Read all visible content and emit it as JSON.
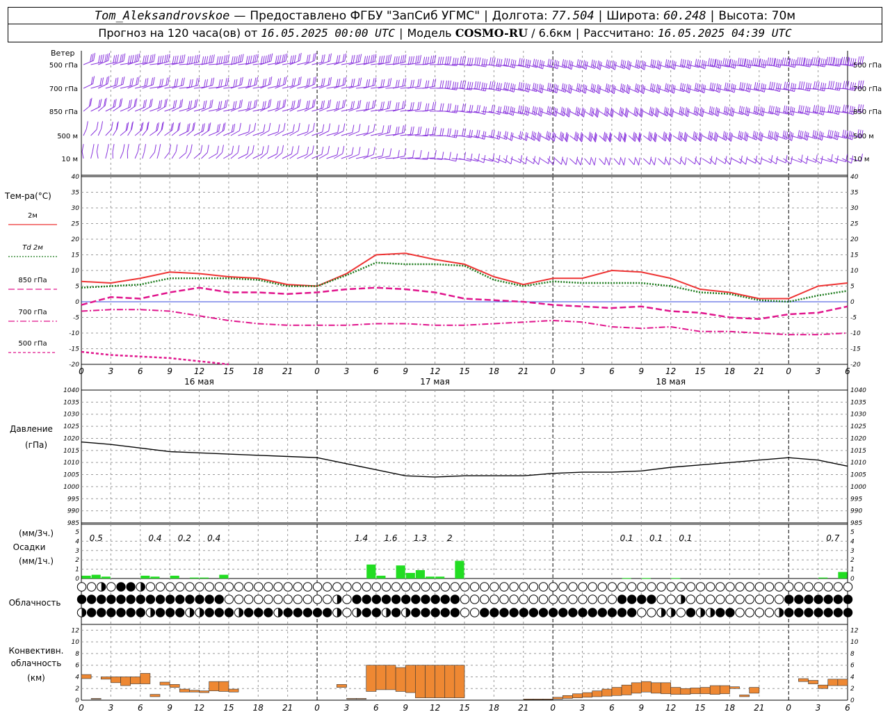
{
  "header": {
    "station": "Tom_Aleksandrovskoe",
    "provider": "Предоставлено ФГБУ \"ЗапСиб УГМС\"",
    "lon_label": "Долгота:",
    "lon_value": "77.504",
    "lat_label": "Широта:",
    "lat_value": "60.248",
    "alt_label": "Высота:",
    "alt_value": "70м",
    "forecast_label": "Прогноз на 120 часа(ов) от",
    "forecast_start": "16.05.2025 00:00 UTC",
    "model_label": "Модель",
    "model_name": "COSMO-RU",
    "model_res": "6.6км",
    "computed_label": "Рассчитано:",
    "computed_at": "16.05.2025 04:39 UTC",
    "dash": "—",
    "slash": "/",
    "bar": "|"
  },
  "panels": {
    "wind": {
      "title": "Ветер",
      "levels": [
        "500 гПа",
        "700 гПа",
        "850 гПа",
        "500 м",
        "10 м"
      ]
    },
    "temp": {
      "title": "Тем-ра(°C)",
      "legend": [
        {
          "label": "2м",
          "color": "#ee3333",
          "dash": "solid"
        },
        {
          "label": "Td  2м",
          "color": "#1a7a1a",
          "dash": "dotted"
        },
        {
          "label": "850 гПа",
          "color": "#e0148c",
          "dash": "long"
        },
        {
          "label": "700 гПа",
          "color": "#e0148c",
          "dash": "dashdot"
        },
        {
          "label": "500 гПа",
          "color": "#e0148c",
          "dash": "short"
        }
      ]
    },
    "pressure": {
      "title": "Давление",
      "unit": "(гПа)"
    },
    "precip": {
      "title": "Осадки",
      "unit_top": "(мм/3ч.)",
      "unit_bottom": "(мм/1ч.)"
    },
    "cloud": {
      "title": "Облачность"
    },
    "conv": {
      "title": "Конвективн.",
      "title2": "облачность",
      "unit": "(км)"
    }
  },
  "time_axis": {
    "hour_labels": [
      "0",
      "3",
      "6",
      "9",
      "12",
      "15",
      "18",
      "21",
      "0",
      "3",
      "6",
      "9",
      "12",
      "15",
      "18",
      "21",
      "0",
      "3",
      "6",
      "9",
      "12",
      "15",
      "18",
      "21",
      "0",
      "3",
      "6"
    ],
    "days": [
      {
        "label": "16 мая",
        "hour": 12
      },
      {
        "label": "17 мая",
        "hour": 36
      },
      {
        "label": "18 мая",
        "hour": 60
      }
    ]
  },
  "chart_data": [
    {
      "type": "line",
      "name": "temperature",
      "ylim": [
        -20,
        40
      ],
      "yticks": [
        "-20",
        "-15",
        "-10",
        "-5",
        "0",
        "5",
        "10",
        "15",
        "20",
        "25",
        "30",
        "35",
        "40"
      ],
      "x_hours": [
        0,
        3,
        6,
        9,
        12,
        15,
        18,
        21,
        24,
        27,
        30,
        33,
        36,
        39,
        42,
        45,
        48,
        51,
        54,
        57,
        60,
        63,
        66,
        69,
        72,
        75,
        78
      ],
      "series": [
        {
          "name": "2м",
          "color": "#ee3333",
          "values": [
            6.5,
            6,
            7.5,
            9.5,
            9,
            8,
            7.5,
            5.5,
            5,
            9,
            15,
            15.5,
            13.5,
            12,
            8,
            5.5,
            7.5,
            7.5,
            10,
            9.5,
            7.5,
            4,
            3,
            1,
            1,
            5,
            6
          ]
        },
        {
          "name": "Td 2м",
          "color": "#1a7a1a",
          "values": [
            4.5,
            5,
            5.5,
            7.5,
            7.5,
            7.5,
            7,
            5,
            5,
            8.5,
            12.5,
            12,
            12,
            11.5,
            7,
            5,
            6.5,
            6,
            6,
            6,
            5,
            3,
            2.5,
            0.5,
            0,
            2,
            3.5
          ]
        },
        {
          "name": "850 гПа",
          "color": "#e0148c",
          "values": [
            -1,
            1.5,
            1,
            3,
            4.5,
            3,
            3,
            2.5,
            3,
            4,
            4.5,
            4,
            3,
            1,
            0.5,
            0,
            -1,
            -1.5,
            -2,
            -1.5,
            -3,
            -3.5,
            -5,
            -5.5,
            -4,
            -3.5,
            -1.5
          ]
        },
        {
          "name": "700 гПа",
          "color": "#e0148c",
          "values": [
            -3,
            -2.5,
            -2.5,
            -3,
            -4.5,
            -6,
            -7,
            -7.5,
            -7.5,
            -7.5,
            -7,
            -7,
            -7.5,
            -7.5,
            -7,
            -6.5,
            -6,
            -6.5,
            -8,
            -8.5,
            -8,
            -9.5,
            -9.5,
            -10,
            -10.5,
            -10.5,
            -10
          ]
        },
        {
          "name": "500 гПа",
          "color": "#e0148c",
          "values": [
            -16,
            -17,
            -17.5,
            -18,
            -19,
            -20
          ]
        }
      ]
    },
    {
      "type": "line",
      "name": "pressure",
      "ylim": [
        985,
        1040
      ],
      "yticks": [
        "985",
        "990",
        "995",
        "1000",
        "1005",
        "1010",
        "1015",
        "1020",
        "1025",
        "1030",
        "1035",
        "1040"
      ],
      "x_hours": [
        0,
        3,
        6,
        9,
        12,
        15,
        18,
        21,
        24,
        27,
        30,
        33,
        36,
        39,
        42,
        45,
        48,
        51,
        54,
        57,
        60,
        63,
        66,
        69,
        72,
        75,
        78
      ],
      "values": [
        1018.5,
        1017.5,
        1016,
        1014.5,
        1014,
        1013.5,
        1013,
        1012.5,
        1012,
        1009.5,
        1007,
        1004.5,
        1004,
        1004.5,
        1004.5,
        1004.5,
        1005.5,
        1006,
        1006,
        1006.5,
        1008,
        1009,
        1010,
        1011,
        1012,
        1011,
        1008.5
      ]
    },
    {
      "type": "bar",
      "name": "precipitation",
      "ylim": [
        0,
        5
      ],
      "yticks": [
        "0",
        "1",
        "2",
        "3",
        "4",
        "5"
      ],
      "bars": [
        {
          "hour": 0,
          "value": 0.3
        },
        {
          "hour": 1,
          "value": 0.4
        },
        {
          "hour": 2,
          "value": 0.2
        },
        {
          "hour": 6,
          "value": 0.3
        },
        {
          "hour": 7,
          "value": 0.2
        },
        {
          "hour": 9,
          "value": 0.3
        },
        {
          "hour": 11,
          "value": 0.1
        },
        {
          "hour": 12,
          "value": 0.1
        },
        {
          "hour": 14,
          "value": 0.4
        },
        {
          "hour": 29,
          "value": 1.5
        },
        {
          "hour": 30,
          "value": 0.3
        },
        {
          "hour": 32,
          "value": 1.4
        },
        {
          "hour": 33,
          "value": 0.6
        },
        {
          "hour": 34,
          "value": 0.9
        },
        {
          "hour": 35,
          "value": 0.2
        },
        {
          "hour": 36,
          "value": 0.2
        },
        {
          "hour": 38,
          "value": 1.9
        },
        {
          "hour": 55,
          "value": 0.05
        },
        {
          "hour": 57,
          "value": 0.05
        },
        {
          "hour": 60,
          "value": 0.05
        },
        {
          "hour": 75,
          "value": 0.1
        },
        {
          "hour": 77,
          "value": 0.7
        }
      ],
      "totals": [
        {
          "hour": 1.5,
          "label": "0.5"
        },
        {
          "hour": 7.5,
          "label": "0.4"
        },
        {
          "hour": 10.5,
          "label": "0.2"
        },
        {
          "hour": 13.5,
          "label": "0.4"
        },
        {
          "hour": 28.5,
          "label": "1.4"
        },
        {
          "hour": 31.5,
          "label": "1.6"
        },
        {
          "hour": 34.5,
          "label": "1.3"
        },
        {
          "hour": 37.5,
          "label": "2"
        },
        {
          "hour": 55.5,
          "label": "0.1"
        },
        {
          "hour": 58.5,
          "label": "0.1"
        },
        {
          "hour": 61.5,
          "label": "0.1"
        },
        {
          "hour": 76.5,
          "label": "0.7"
        }
      ]
    },
    {
      "type": "table",
      "name": "cloudiness",
      "cells_per_row": 79,
      "rows": [
        "0020442000000000000000000000000000000000000000000000000000000000000000000000000",
        "4444444444444440000000000020444444444440000000000000000444400200000000004444444",
        "2444444244422444244424444420244242444440044444444444444440022042244000024444444"
      ]
    },
    {
      "type": "bar",
      "name": "convective cloud",
      "ylim": [
        0,
        13
      ],
      "yticks": [
        "0",
        "2",
        "4",
        "6",
        "8",
        "10",
        "12"
      ],
      "bars": [
        {
          "hour": 0.5,
          "base": 3.7,
          "top": 4.4
        },
        {
          "hour": 1.5,
          "base": 0.2,
          "top": 0.3
        },
        {
          "hour": 2.5,
          "base": 3.6,
          "top": 4.0
        },
        {
          "hour": 3.5,
          "base": 3.0,
          "top": 4.0
        },
        {
          "hour": 4.5,
          "base": 2.5,
          "top": 4.0
        },
        {
          "hour": 5.5,
          "base": 2.8,
          "top": 4.0
        },
        {
          "hour": 6.5,
          "base": 2.8,
          "top": 4.6
        },
        {
          "hour": 7.5,
          "base": 0.6,
          "top": 1.0
        },
        {
          "hour": 8.5,
          "base": 2.6,
          "top": 3.1
        },
        {
          "hour": 9.5,
          "base": 2.2,
          "top": 2.7
        },
        {
          "hour": 10.5,
          "base": 1.4,
          "top": 1.9
        },
        {
          "hour": 11.5,
          "base": 1.4,
          "top": 1.7
        },
        {
          "hour": 12.5,
          "base": 1.3,
          "top": 1.6
        },
        {
          "hour": 13.5,
          "base": 1.6,
          "top": 3.2
        },
        {
          "hour": 14.5,
          "base": 1.5,
          "top": 3.2
        },
        {
          "hour": 15.5,
          "base": 1.4,
          "top": 1.9
        },
        {
          "hour": 26.5,
          "base": 2.2,
          "top": 2.7
        },
        {
          "hour": 27.5,
          "base": 0.2,
          "top": 0.3
        },
        {
          "hour": 28.5,
          "base": 0.2,
          "top": 0.3
        },
        {
          "hour": 29.5,
          "base": 1.5,
          "top": 6.0
        },
        {
          "hour": 30.5,
          "base": 1.8,
          "top": 6.0
        },
        {
          "hour": 31.5,
          "base": 1.8,
          "top": 6.0
        },
        {
          "hour": 32.5,
          "base": 1.5,
          "top": 5.6
        },
        {
          "hour": 33.5,
          "base": 1.3,
          "top": 6.0
        },
        {
          "hour": 34.5,
          "base": 0.4,
          "top": 6.0
        },
        {
          "hour": 35.5,
          "base": 0.4,
          "top": 6.0
        },
        {
          "hour": 36.5,
          "base": 0.4,
          "top": 6.0
        },
        {
          "hour": 37.5,
          "base": 0.4,
          "top": 6.0
        },
        {
          "hour": 38.5,
          "base": 0.4,
          "top": 6.0
        },
        {
          "hour": 45.5,
          "base": 0.1,
          "top": 0.2
        },
        {
          "hour": 46.5,
          "base": 0.1,
          "top": 0.2
        },
        {
          "hour": 47.5,
          "base": 0.1,
          "top": 0.2
        },
        {
          "hour": 48.5,
          "base": 0.2,
          "top": 0.5
        },
        {
          "hour": 49.5,
          "base": 0.3,
          "top": 0.8
        },
        {
          "hour": 50.5,
          "base": 0.4,
          "top": 1.1
        },
        {
          "hour": 51.5,
          "base": 0.5,
          "top": 1.3
        },
        {
          "hour": 52.5,
          "base": 0.6,
          "top": 1.6
        },
        {
          "hour": 53.5,
          "base": 0.7,
          "top": 1.9
        },
        {
          "hour": 54.5,
          "base": 0.8,
          "top": 2.2
        },
        {
          "hour": 55.5,
          "base": 0.9,
          "top": 2.6
        },
        {
          "hour": 56.5,
          "base": 1.2,
          "top": 3.0
        },
        {
          "hour": 57.5,
          "base": 1.4,
          "top": 3.2
        },
        {
          "hour": 58.5,
          "base": 1.2,
          "top": 3.0
        },
        {
          "hour": 59.5,
          "base": 1.1,
          "top": 3.0
        },
        {
          "hour": 60.5,
          "base": 1.0,
          "top": 2.2
        },
        {
          "hour": 61.5,
          "base": 1.0,
          "top": 2.0
        },
        {
          "hour": 62.5,
          "base": 1.1,
          "top": 2.1
        },
        {
          "hour": 63.5,
          "base": 1.1,
          "top": 2.2
        },
        {
          "hour": 64.5,
          "base": 1.0,
          "top": 2.5
        },
        {
          "hour": 65.5,
          "base": 1.1,
          "top": 2.5
        },
        {
          "hour": 66.5,
          "base": 2.0,
          "top": 2.3
        },
        {
          "hour": 67.5,
          "base": 0.6,
          "top": 0.9
        },
        {
          "hour": 68.5,
          "base": 1.2,
          "top": 2.2
        },
        {
          "hour": 73.5,
          "base": 3.2,
          "top": 3.7
        },
        {
          "hour": 74.5,
          "base": 2.8,
          "top": 3.4
        },
        {
          "hour": 75.5,
          "base": 2.0,
          "top": 2.6
        },
        {
          "hour": 76.5,
          "base": 2.5,
          "top": 3.6
        },
        {
          "hour": 77.5,
          "base": 2.5,
          "top": 3.6
        }
      ]
    }
  ],
  "winds": {
    "speeds": [
      [
        26,
        27,
        28,
        28,
        27,
        26,
        25,
        24,
        24,
        25,
        26,
        27,
        28,
        29,
        30,
        31,
        32,
        33,
        33,
        34,
        34,
        35,
        35,
        36,
        36,
        35,
        34
      ],
      [
        22,
        23,
        24,
        24,
        23,
        22,
        21,
        20,
        20,
        21,
        22,
        24,
        26,
        27,
        28,
        29,
        30,
        31,
        31,
        32,
        32,
        33,
        33,
        34,
        33,
        32,
        31
      ],
      [
        16,
        17,
        18,
        18,
        17,
        16,
        15,
        15,
        15,
        16,
        18,
        20,
        22,
        24,
        26,
        27,
        28,
        28,
        28,
        29,
        29,
        30,
        30,
        30,
        29,
        28,
        27
      ],
      [
        14,
        15,
        16,
        16,
        15,
        14,
        13,
        13,
        13,
        14,
        16,
        18,
        20,
        22,
        24,
        25,
        26,
        26,
        27,
        27,
        28,
        28,
        28,
        27,
        27,
        26,
        25
      ],
      [
        8,
        9,
        10,
        11,
        10,
        9,
        8,
        7,
        7,
        8,
        9,
        10,
        11,
        12,
        13,
        13,
        14,
        14,
        13,
        13,
        12,
        12,
        11,
        11,
        10,
        10,
        9
      ]
    ],
    "directions": [
      [
        240,
        245,
        250,
        255,
        255,
        250,
        245,
        240,
        245,
        250,
        255,
        260,
        270,
        280,
        290,
        300,
        305,
        310,
        310,
        305,
        300,
        295,
        290,
        285,
        280,
        275,
        270
      ],
      [
        235,
        240,
        245,
        250,
        250,
        245,
        240,
        240,
        245,
        250,
        255,
        260,
        275,
        285,
        295,
        305,
        310,
        315,
        315,
        310,
        305,
        300,
        295,
        290,
        285,
        280,
        275
      ],
      [
        220,
        225,
        230,
        235,
        240,
        240,
        235,
        235,
        240,
        245,
        250,
        260,
        275,
        290,
        300,
        310,
        320,
        325,
        325,
        320,
        315,
        310,
        305,
        300,
        295,
        290,
        285
      ],
      [
        200,
        205,
        210,
        220,
        225,
        230,
        230,
        230,
        235,
        240,
        250,
        265,
        280,
        295,
        310,
        320,
        330,
        335,
        335,
        330,
        325,
        320,
        315,
        310,
        305,
        300,
        295
      ],
      [
        180,
        185,
        195,
        205,
        215,
        220,
        220,
        225,
        230,
        240,
        255,
        270,
        285,
        300,
        315,
        325,
        335,
        340,
        340,
        335,
        330,
        325,
        320,
        315,
        310,
        305,
        300
      ]
    ]
  }
}
